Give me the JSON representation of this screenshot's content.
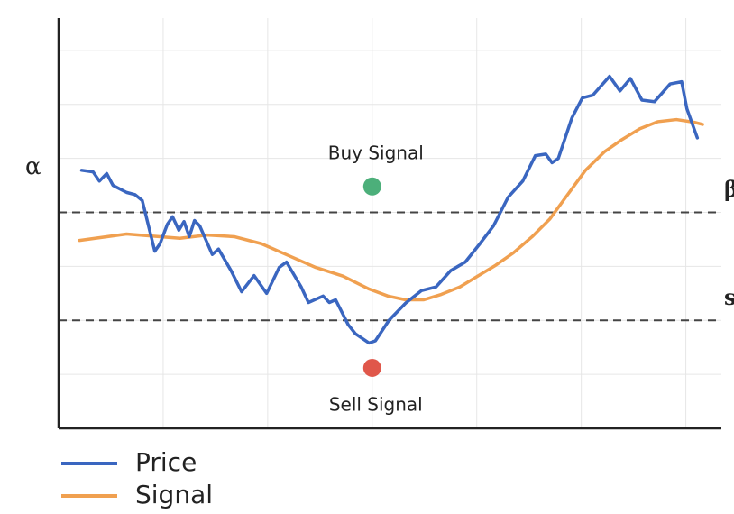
{
  "chart_data": {
    "type": "line",
    "xlim": [
      0,
      6.34
    ],
    "ylim": [
      0,
      7.6
    ],
    "xticks": [
      1,
      2,
      3,
      4,
      5,
      6
    ],
    "yticks": [
      1,
      2,
      3,
      4,
      5,
      6,
      7
    ],
    "grid": true,
    "legend": "bottom-left",
    "series": [
      {
        "name": "Price",
        "color": "#3a66c0",
        "x": [
          0.22,
          0.33,
          0.39,
          0.46,
          0.52,
          0.65,
          0.73,
          0.8,
          0.86,
          0.92,
          0.97,
          1.04,
          1.09,
          1.15,
          1.2,
          1.25,
          1.3,
          1.35,
          1.47,
          1.53,
          1.65,
          1.75,
          1.87,
          1.99,
          2.11,
          2.18,
          2.32,
          2.39,
          2.53,
          2.59,
          2.65,
          2.77,
          2.84,
          2.97,
          3.03,
          3.16,
          3.32,
          3.47,
          3.61,
          3.75,
          3.89,
          4.03,
          4.16,
          4.3,
          4.44,
          4.56,
          4.66,
          4.72,
          4.78,
          4.91,
          5.01,
          5.11,
          5.27,
          5.37,
          5.47,
          5.58,
          5.7,
          5.85,
          5.96,
          6.01,
          6.11
        ],
        "values": [
          4.78,
          4.75,
          4.58,
          4.72,
          4.5,
          4.37,
          4.33,
          4.22,
          3.75,
          3.28,
          3.42,
          3.78,
          3.92,
          3.67,
          3.83,
          3.55,
          3.85,
          3.75,
          3.22,
          3.32,
          2.92,
          2.53,
          2.83,
          2.5,
          2.98,
          3.08,
          2.62,
          2.33,
          2.45,
          2.33,
          2.38,
          1.92,
          1.75,
          1.58,
          1.62,
          2.0,
          2.32,
          2.55,
          2.62,
          2.92,
          3.08,
          3.42,
          3.75,
          4.28,
          4.58,
          5.05,
          5.08,
          4.92,
          5.0,
          5.75,
          6.12,
          6.17,
          6.52,
          6.25,
          6.48,
          6.08,
          6.05,
          6.38,
          6.42,
          5.92,
          5.38
        ]
      },
      {
        "name": "Signal",
        "color": "#f0a050",
        "x": [
          0.2,
          0.65,
          1.16,
          1.42,
          1.68,
          1.94,
          2.2,
          2.46,
          2.72,
          2.97,
          3.15,
          3.32,
          3.49,
          3.66,
          3.84,
          4.01,
          4.18,
          4.35,
          4.53,
          4.7,
          4.87,
          5.04,
          5.22,
          5.39,
          5.56,
          5.73,
          5.91,
          6.08,
          6.16
        ],
        "values": [
          3.48,
          3.6,
          3.52,
          3.58,
          3.55,
          3.42,
          3.2,
          2.98,
          2.82,
          2.58,
          2.45,
          2.38,
          2.38,
          2.48,
          2.62,
          2.82,
          3.02,
          3.25,
          3.55,
          3.88,
          4.33,
          4.78,
          5.12,
          5.35,
          5.55,
          5.68,
          5.72,
          5.67,
          5.63
        ]
      }
    ],
    "levels": [
      {
        "value": 4,
        "label": "β"
      },
      {
        "value": 2,
        "label": "s"
      }
    ],
    "annotations": [
      {
        "text": "α",
        "y": 4.83
      }
    ],
    "markers": [
      {
        "name": "Buy Signal",
        "x": 3,
        "y": 4.48,
        "color": "#4caf7a",
        "label_side": "above"
      },
      {
        "name": "Sell Signal",
        "x": 3,
        "y": 1.12,
        "color": "#e0574a",
        "label_side": "below"
      }
    ]
  }
}
